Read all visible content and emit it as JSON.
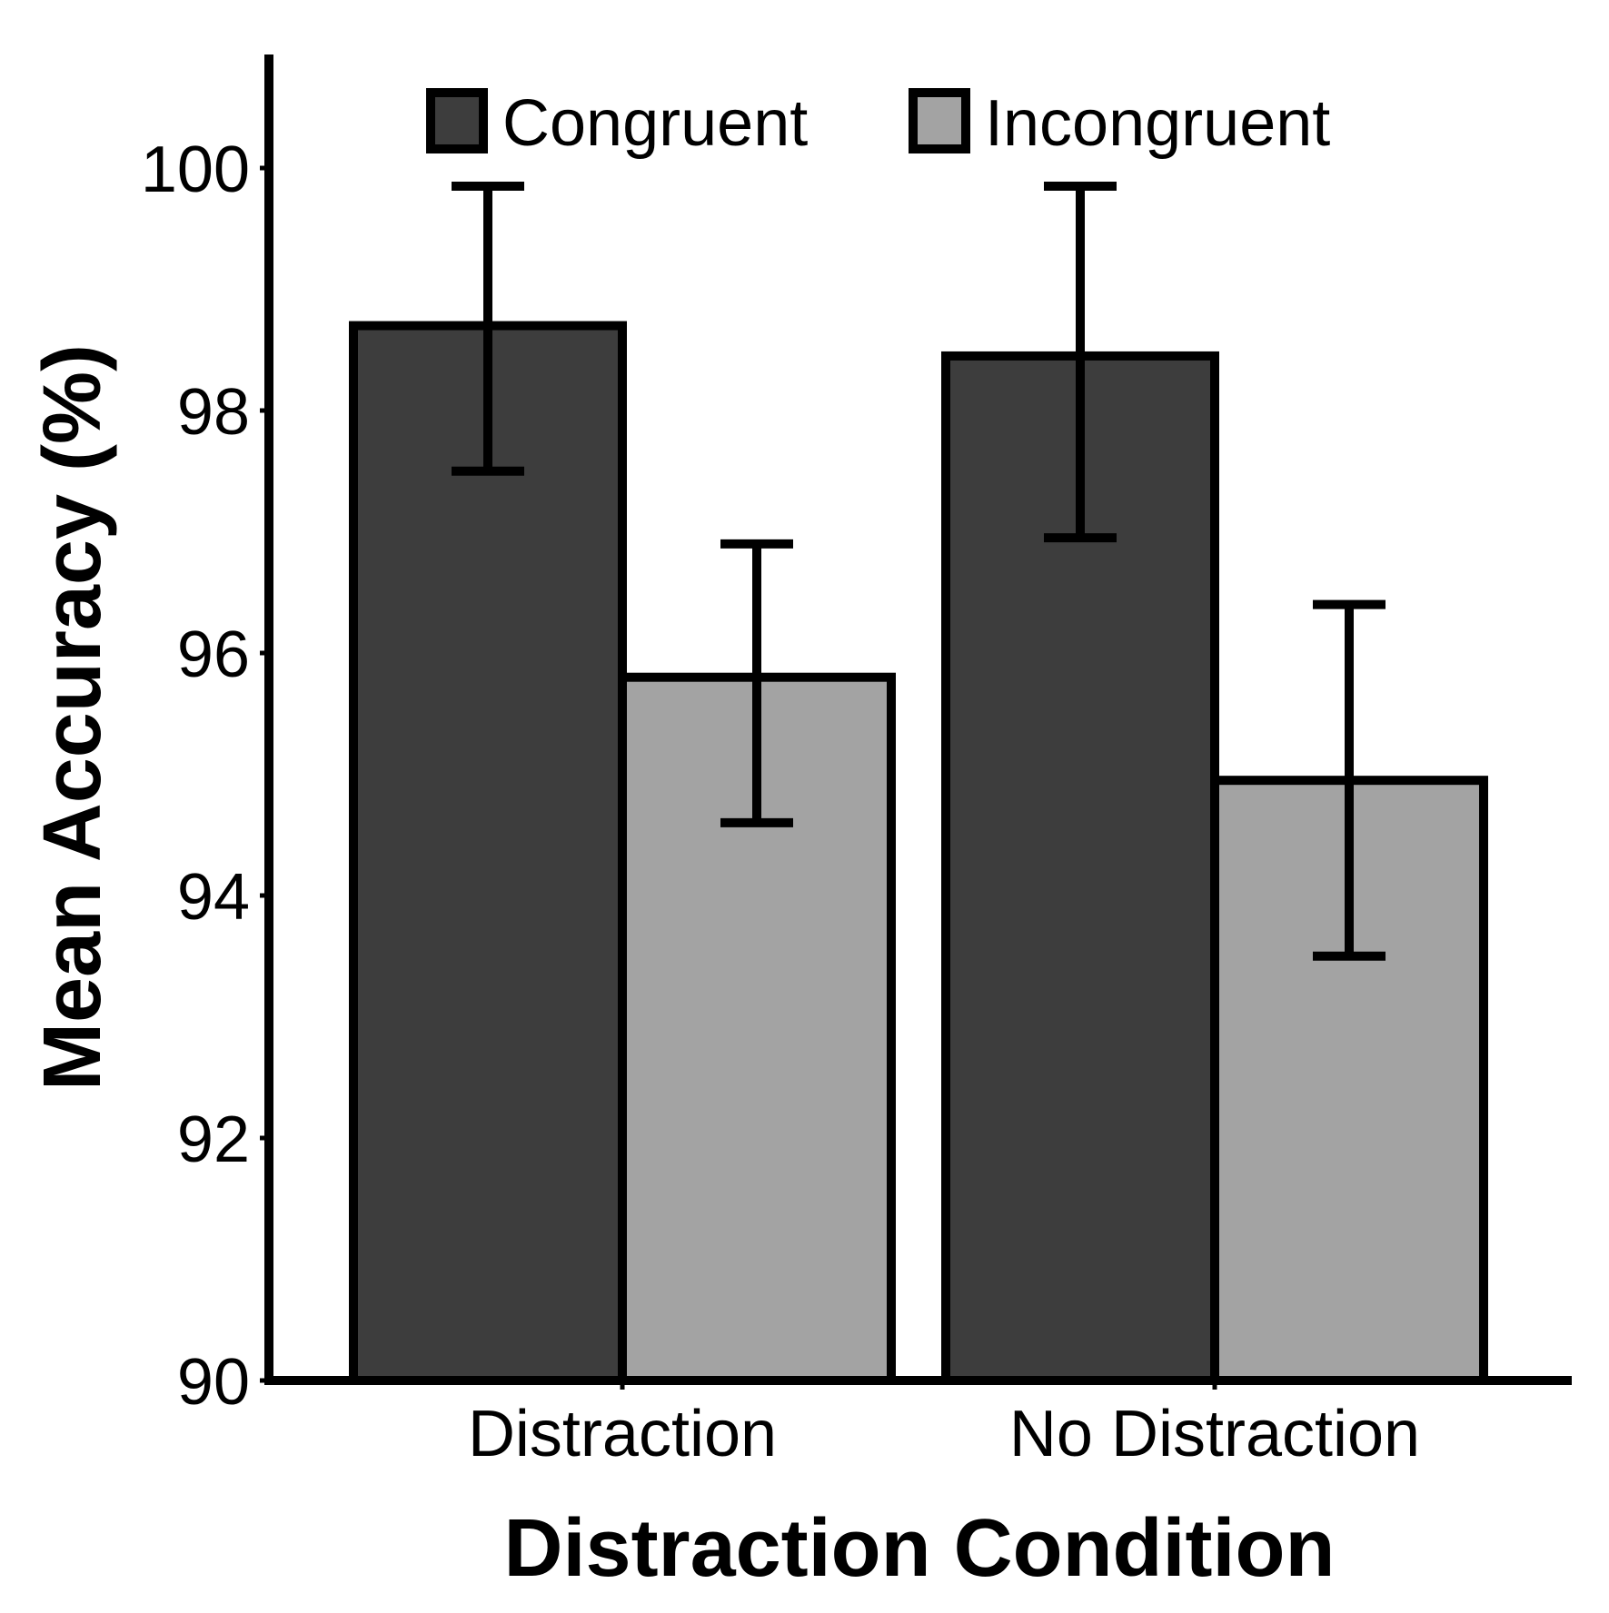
{
  "chart_data": {
    "type": "bar",
    "title": "",
    "xlabel": "Distraction Condition",
    "ylabel": "Mean Accuracy (%)",
    "categories": [
      "Distraction",
      "No Distraction"
    ],
    "ylim": [
      90,
      101
    ],
    "yticks": [
      90,
      92,
      94,
      96,
      98,
      100
    ],
    "grid": false,
    "legend": {
      "position": "top",
      "entries": [
        "Congruent",
        "Incongruent"
      ]
    },
    "series": [
      {
        "name": "Congruent",
        "color": "#3d3d3d",
        "values": [
          98.7,
          98.45
        ],
        "error_lower": [
          97.5,
          96.95
        ],
        "error_upper": [
          99.85,
          99.85
        ]
      },
      {
        "name": "Incongruent",
        "color": "#a3a3a3",
        "values": [
          95.8,
          94.95
        ],
        "error_lower": [
          94.6,
          93.5
        ],
        "error_upper": [
          96.9,
          96.4
        ]
      }
    ]
  }
}
